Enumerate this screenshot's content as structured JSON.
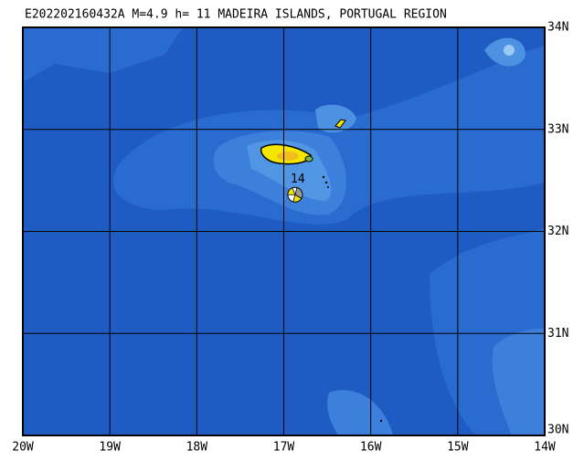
{
  "title": "E202202160432A M=4.9 h= 11 MADEIRA ISLANDS, PORTUGAL REGION",
  "map": {
    "xlim": [
      -20,
      -14
    ],
    "ylim": [
      30,
      34
    ],
    "xticks": [
      {
        "value": -20,
        "label": "20W"
      },
      {
        "value": -19,
        "label": "19W"
      },
      {
        "value": -18,
        "label": "18W"
      },
      {
        "value": -17,
        "label": "17W"
      },
      {
        "value": -16,
        "label": "16W"
      },
      {
        "value": -15,
        "label": "15W"
      },
      {
        "value": -14,
        "label": "14W"
      }
    ],
    "yticks": [
      {
        "value": 30,
        "label": "30N"
      },
      {
        "value": 31,
        "label": "31N"
      },
      {
        "value": 32,
        "label": "32N"
      },
      {
        "value": 33,
        "label": "33N"
      },
      {
        "value": 34,
        "label": "34N"
      }
    ],
    "event": {
      "lon": -16.87,
      "lat": 32.36,
      "label": "14"
    }
  }
}
